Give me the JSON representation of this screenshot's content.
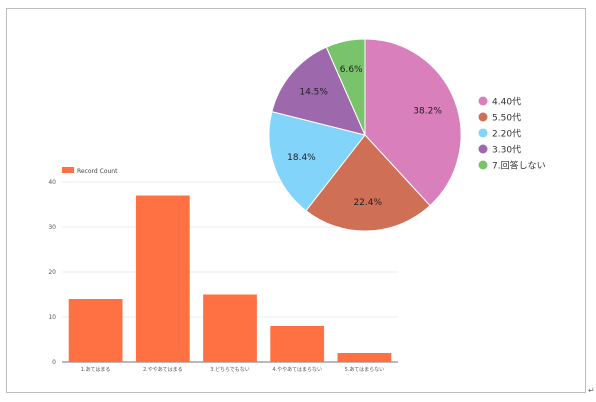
{
  "chart_data": [
    {
      "type": "bar",
      "legend": "Record Count",
      "legend_position": "top-left",
      "categories": [
        "1.あてはまる",
        "2.ややあてはまる",
        "3.どちらでもない",
        "4.ややあてはまらない",
        "5.あてはまらない"
      ],
      "values": [
        14,
        37,
        15,
        8,
        2
      ],
      "yticks": [
        "0",
        "10",
        "20",
        "30",
        "40"
      ],
      "ylim": [
        0,
        40
      ],
      "grid": true,
      "color": "#ff7043"
    },
    {
      "type": "pie",
      "legend_position": "right",
      "slices": [
        {
          "name": "4.40代",
          "value": 38.2,
          "label": "38.2%",
          "color": "#d97fbb"
        },
        {
          "name": "5.50代",
          "value": 22.4,
          "label": "22.4%",
          "color": "#cf6f55"
        },
        {
          "name": "2.20代",
          "value": 18.4,
          "label": "18.4%",
          "color": "#82d4fa"
        },
        {
          "name": "3.30代",
          "value": 14.5,
          "label": "14.5%",
          "color": "#9e68ac"
        },
        {
          "name": "7.回答しない",
          "value": 6.6,
          "label": "6.6%",
          "color": "#79c46a"
        }
      ]
    }
  ]
}
